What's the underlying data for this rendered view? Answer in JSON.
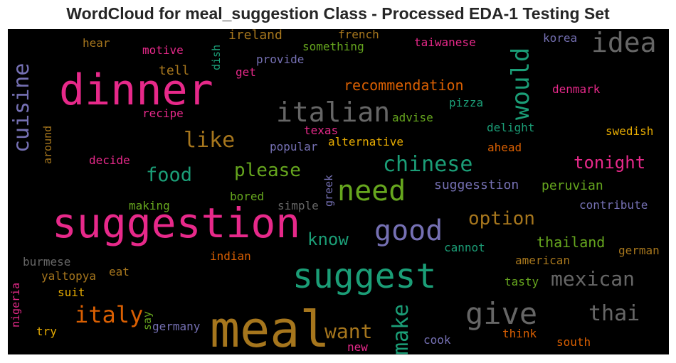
{
  "chart_data": {
    "type": "wordcloud",
    "title": "WordCloud for meal_suggestion Class - Processed EDA-1 Testing Set",
    "background": "#000000",
    "words": [
      {
        "text": "meal",
        "weight": 1.0,
        "color": "#a6761d",
        "orientation": "horizontal"
      },
      {
        "text": "dinner",
        "weight": 0.82,
        "color": "#e7298a",
        "orientation": "horizontal"
      },
      {
        "text": "suggestion",
        "weight": 0.82,
        "color": "#e7298a",
        "orientation": "horizontal"
      },
      {
        "text": "suggest",
        "weight": 0.7,
        "color": "#1b9e77",
        "orientation": "horizontal"
      },
      {
        "text": "need",
        "weight": 0.62,
        "color": "#66a61e",
        "orientation": "horizontal"
      },
      {
        "text": "good",
        "weight": 0.6,
        "color": "#7570b3",
        "orientation": "horizontal"
      },
      {
        "text": "give",
        "weight": 0.6,
        "color": "#666666",
        "orientation": "horizontal"
      },
      {
        "text": "italian",
        "weight": 0.52,
        "color": "#666666",
        "orientation": "horizontal"
      },
      {
        "text": "idea",
        "weight": 0.52,
        "color": "#666666",
        "orientation": "horizontal"
      },
      {
        "text": "would",
        "weight": 0.52,
        "color": "#1b9e77",
        "orientation": "vertical"
      },
      {
        "text": "cuisine",
        "weight": 0.48,
        "color": "#7570b3",
        "orientation": "vertical"
      },
      {
        "text": "italy",
        "weight": 0.48,
        "color": "#d95f02",
        "orientation": "horizontal"
      },
      {
        "text": "make",
        "weight": 0.46,
        "color": "#1b9e77",
        "orientation": "vertical"
      },
      {
        "text": "thai",
        "weight": 0.44,
        "color": "#666666",
        "orientation": "horizontal"
      },
      {
        "text": "like",
        "weight": 0.42,
        "color": "#a6761d",
        "orientation": "horizontal"
      },
      {
        "text": "chinese",
        "weight": 0.42,
        "color": "#1b9e77",
        "orientation": "horizontal"
      },
      {
        "text": "want",
        "weight": 0.42,
        "color": "#a6761d",
        "orientation": "horizontal"
      },
      {
        "text": "mexican",
        "weight": 0.42,
        "color": "#666666",
        "orientation": "horizontal"
      },
      {
        "text": "food",
        "weight": 0.38,
        "color": "#1b9e77",
        "orientation": "horizontal"
      },
      {
        "text": "please",
        "weight": 0.36,
        "color": "#66a61e",
        "orientation": "horizontal"
      },
      {
        "text": "option",
        "weight": 0.36,
        "color": "#a6761d",
        "orientation": "horizontal"
      },
      {
        "text": "know",
        "weight": 0.34,
        "color": "#1b9e77",
        "orientation": "horizontal"
      },
      {
        "text": "tonight",
        "weight": 0.34,
        "color": "#e7298a",
        "orientation": "horizontal"
      },
      {
        "text": "recommendation",
        "weight": 0.27,
        "color": "#d95f02",
        "orientation": "horizontal"
      },
      {
        "text": "thailand",
        "weight": 0.27,
        "color": "#66a61e",
        "orientation": "horizontal"
      },
      {
        "text": "suggesstion",
        "weight": 0.26,
        "color": "#7570b3",
        "orientation": "horizontal"
      },
      {
        "text": "peruvian",
        "weight": 0.26,
        "color": "#66a61e",
        "orientation": "horizontal"
      },
      {
        "text": "ireland",
        "weight": 0.24,
        "color": "#a6761d",
        "orientation": "horizontal"
      },
      {
        "text": "tell",
        "weight": 0.24,
        "color": "#a6761d",
        "orientation": "horizontal"
      },
      {
        "text": "french",
        "weight": 0.2,
        "color": "#a6761d",
        "orientation": "horizontal"
      },
      {
        "text": "something",
        "weight": 0.2,
        "color": "#66a61e",
        "orientation": "horizontal"
      },
      {
        "text": "taiwanese",
        "weight": 0.2,
        "color": "#e7298a",
        "orientation": "horizontal"
      },
      {
        "text": "korea",
        "weight": 0.2,
        "color": "#7570b3",
        "orientation": "horizontal"
      },
      {
        "text": "hear",
        "weight": 0.2,
        "color": "#a6761d",
        "orientation": "horizontal"
      },
      {
        "text": "motive",
        "weight": 0.2,
        "color": "#e7298a",
        "orientation": "horizontal"
      },
      {
        "text": "dish",
        "weight": 0.18,
        "color": "#1b9e77",
        "orientation": "vertical"
      },
      {
        "text": "provide",
        "weight": 0.2,
        "color": "#7570b3",
        "orientation": "horizontal"
      },
      {
        "text": "get",
        "weight": 0.2,
        "color": "#e7298a",
        "orientation": "horizontal"
      },
      {
        "text": "denmark",
        "weight": 0.2,
        "color": "#e7298a",
        "orientation": "horizontal"
      },
      {
        "text": "recipe",
        "weight": 0.2,
        "color": "#e7298a",
        "orientation": "horizontal"
      },
      {
        "text": "advise",
        "weight": 0.2,
        "color": "#66a61e",
        "orientation": "horizontal"
      },
      {
        "text": "pizza",
        "weight": 0.2,
        "color": "#1b9e77",
        "orientation": "horizontal"
      },
      {
        "text": "around",
        "weight": 0.19,
        "color": "#a6761d",
        "orientation": "vertical"
      },
      {
        "text": "texas",
        "weight": 0.2,
        "color": "#e7298a",
        "orientation": "horizontal"
      },
      {
        "text": "delight",
        "weight": 0.2,
        "color": "#1b9e77",
        "orientation": "horizontal"
      },
      {
        "text": "swedish",
        "weight": 0.2,
        "color": "#e6ab02",
        "orientation": "horizontal"
      },
      {
        "text": "popular",
        "weight": 0.2,
        "color": "#7570b3",
        "orientation": "horizontal"
      },
      {
        "text": "alternative",
        "weight": 0.2,
        "color": "#e6ab02",
        "orientation": "horizontal"
      },
      {
        "text": "decide",
        "weight": 0.2,
        "color": "#e7298a",
        "orientation": "horizontal"
      },
      {
        "text": "ahead",
        "weight": 0.2,
        "color": "#d95f02",
        "orientation": "horizontal"
      },
      {
        "text": "greek",
        "weight": 0.18,
        "color": "#7570b3",
        "orientation": "vertical"
      },
      {
        "text": "bored",
        "weight": 0.2,
        "color": "#66a61e",
        "orientation": "horizontal"
      },
      {
        "text": "making",
        "weight": 0.2,
        "color": "#66a61e",
        "orientation": "horizontal"
      },
      {
        "text": "simple",
        "weight": 0.2,
        "color": "#666666",
        "orientation": "horizontal"
      },
      {
        "text": "contribute",
        "weight": 0.2,
        "color": "#7570b3",
        "orientation": "horizontal"
      },
      {
        "text": "cannot",
        "weight": 0.2,
        "color": "#1b9e77",
        "orientation": "horizontal"
      },
      {
        "text": "german",
        "weight": 0.2,
        "color": "#a6761d",
        "orientation": "horizontal"
      },
      {
        "text": "burmese",
        "weight": 0.2,
        "color": "#666666",
        "orientation": "horizontal"
      },
      {
        "text": "indian",
        "weight": 0.2,
        "color": "#d95f02",
        "orientation": "horizontal"
      },
      {
        "text": "american",
        "weight": 0.2,
        "color": "#a6761d",
        "orientation": "horizontal"
      },
      {
        "text": "yaltopya",
        "weight": 0.2,
        "color": "#a6761d",
        "orientation": "horizontal"
      },
      {
        "text": "eat",
        "weight": 0.2,
        "color": "#a6761d",
        "orientation": "horizontal"
      },
      {
        "text": "tasty",
        "weight": 0.2,
        "color": "#66a61e",
        "orientation": "horizontal"
      },
      {
        "text": "suit",
        "weight": 0.2,
        "color": "#e6ab02",
        "orientation": "horizontal"
      },
      {
        "text": "nigeria",
        "weight": 0.18,
        "color": "#e7298a",
        "orientation": "vertical"
      },
      {
        "text": "say",
        "weight": 0.18,
        "color": "#66a61e",
        "orientation": "vertical"
      },
      {
        "text": "try",
        "weight": 0.2,
        "color": "#e6ab02",
        "orientation": "horizontal"
      },
      {
        "text": "germany",
        "weight": 0.2,
        "color": "#7570b3",
        "orientation": "horizontal"
      },
      {
        "text": "think",
        "weight": 0.2,
        "color": "#d95f02",
        "orientation": "horizontal"
      },
      {
        "text": "new",
        "weight": 0.2,
        "color": "#e7298a",
        "orientation": "horizontal"
      },
      {
        "text": "cook",
        "weight": 0.2,
        "color": "#7570b3",
        "orientation": "horizontal"
      },
      {
        "text": "south",
        "weight": 0.2,
        "color": "#d95f02",
        "orientation": "horizontal"
      }
    ]
  }
}
